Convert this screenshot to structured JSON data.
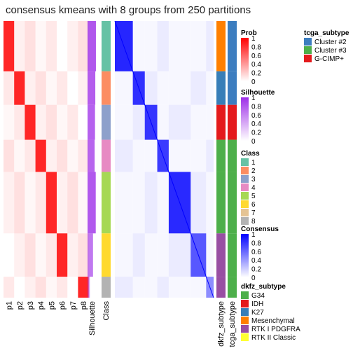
{
  "chart_data": {
    "type": "heatmap",
    "title": "consensus kmeans with 8 groups from 250 partitions",
    "prob_columns": [
      "p1",
      "p2",
      "p3",
      "p4",
      "p5",
      "p6",
      "p7",
      "p8"
    ],
    "annotation_columns": [
      "Silhouette",
      "Class"
    ],
    "right_annotation_columns": [
      "dkfz_subtype",
      "tcga_subtype"
    ],
    "row_groups": [
      {
        "class": 1,
        "rows": 72,
        "prob_col": 0,
        "silhouette": 0.92
      },
      {
        "class": 2,
        "rows": 48,
        "prob_col": 1,
        "silhouette": 0.85
      },
      {
        "class": 3,
        "rows": 50,
        "prob_col": 2,
        "silhouette": 0.82
      },
      {
        "class": 4,
        "rows": 46,
        "prob_col": 3,
        "silhouette": 0.78
      },
      {
        "class": 5,
        "rows": 88,
        "prob_col": 4,
        "silhouette": 0.9
      },
      {
        "class": 6,
        "rows": 62,
        "prob_col": 5,
        "silhouette": 0.6
      },
      {
        "class": 8,
        "rows": 30,
        "prob_col": 7,
        "silhouette": 0.25
      }
    ],
    "legends": {
      "tcga_subtype": {
        "title": "tcga_subtype",
        "items": [
          {
            "label": "Cluster #2",
            "color": "#3C7DBF"
          },
          {
            "label": "Cluster #3",
            "color": "#4DAF4A"
          },
          {
            "label": "G-CIMP+",
            "color": "#E41A1C"
          }
        ]
      },
      "prob": {
        "title": "Prob",
        "ticks": [
          "1",
          "0.8",
          "0.6",
          "0.4",
          "0.2",
          "0"
        ],
        "color_high": "#FF0000",
        "color_low": "#FFFFFF"
      },
      "silhouette": {
        "title": "Silhouette",
        "ticks": [
          "1",
          "0.8",
          "0.6",
          "0.4",
          "0.2",
          "0"
        ],
        "color_high": "#9E2FE8",
        "color_low": "#FFFFFF"
      },
      "class": {
        "title": "Class",
        "items": [
          {
            "label": "1",
            "color": "#66C2A5"
          },
          {
            "label": "2",
            "color": "#FC8D62"
          },
          {
            "label": "3",
            "color": "#8DA0CB"
          },
          {
            "label": "4",
            "color": "#E78AC3"
          },
          {
            "label": "5",
            "color": "#A6D854"
          },
          {
            "label": "6",
            "color": "#FFD92F"
          },
          {
            "label": "7",
            "color": "#E5C494"
          },
          {
            "label": "8",
            "color": "#B3B3B3"
          }
        ]
      },
      "consensus": {
        "title": "Consensus",
        "ticks": [
          "1",
          "0.8",
          "0.6",
          "0.4",
          "0.2",
          "0"
        ],
        "color_high": "#0000FF",
        "color_low": "#FFFFFF"
      },
      "dkfz_subtype": {
        "title": "dkfz_subtype",
        "items": [
          {
            "label": "G34",
            "color": "#4DAF4A"
          },
          {
            "label": "IDH",
            "color": "#E41A1C"
          },
          {
            "label": "K27",
            "color": "#377EB8"
          },
          {
            "label": "Mesenchymal",
            "color": "#FF7F00"
          },
          {
            "label": "RTK I PDGFRA",
            "color": "#984EA3"
          },
          {
            "label": "RTK II Classic",
            "color": "#FFFF33"
          }
        ]
      }
    }
  }
}
